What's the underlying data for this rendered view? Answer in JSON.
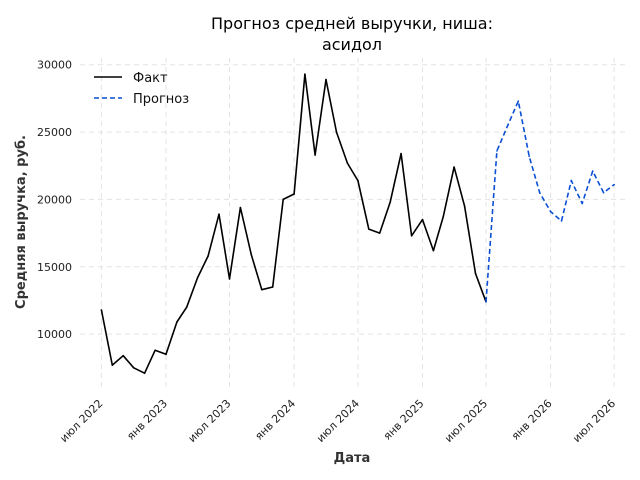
{
  "chart_data": {
    "type": "line",
    "title_lines": [
      "Прогноз средней выручки, ниша:",
      "асидол"
    ],
    "xlabel": "Дата",
    "ylabel": "Средняя выручка, руб.",
    "ylim": [
      6000,
      30500
    ],
    "xlim": [
      "2022-05-01",
      "2026-08-01"
    ],
    "grid": true,
    "legend_position": "top-left",
    "x_ticks": [
      {
        "date": "2022-07-01",
        "label": "июл 2022"
      },
      {
        "date": "2023-01-01",
        "label": "янв 2023"
      },
      {
        "date": "2023-07-01",
        "label": "июл 2023"
      },
      {
        "date": "2024-01-01",
        "label": "янв 2024"
      },
      {
        "date": "2024-07-01",
        "label": "июл 2024"
      },
      {
        "date": "2025-01-01",
        "label": "янв 2025"
      },
      {
        "date": "2025-07-01",
        "label": "июл 2025"
      },
      {
        "date": "2026-01-01",
        "label": "янв 2026"
      },
      {
        "date": "2026-07-01",
        "label": "июл 2026"
      }
    ],
    "y_ticks": [
      {
        "value": 10000,
        "label": "10000"
      },
      {
        "value": 15000,
        "label": "15000"
      },
      {
        "value": 20000,
        "label": "20000"
      },
      {
        "value": 25000,
        "label": "25000"
      },
      {
        "value": 30000,
        "label": "30000"
      }
    ],
    "series": [
      {
        "name": "Факт",
        "color": "#000000",
        "dash": "solid",
        "points": [
          {
            "x": "2022-07-01",
            "y": 11800
          },
          {
            "x": "2022-08-01",
            "y": 7700
          },
          {
            "x": "2022-09-01",
            "y": 8400
          },
          {
            "x": "2022-10-01",
            "y": 7500
          },
          {
            "x": "2022-11-01",
            "y": 7100
          },
          {
            "x": "2022-12-01",
            "y": 8800
          },
          {
            "x": "2023-01-01",
            "y": 8500
          },
          {
            "x": "2023-02-01",
            "y": 10900
          },
          {
            "x": "2023-03-01",
            "y": 12000
          },
          {
            "x": "2023-04-01",
            "y": 14200
          },
          {
            "x": "2023-05-01",
            "y": 15800
          },
          {
            "x": "2023-06-01",
            "y": 18900
          },
          {
            "x": "2023-07-01",
            "y": 14100
          },
          {
            "x": "2023-08-01",
            "y": 19400
          },
          {
            "x": "2023-09-01",
            "y": 15900
          },
          {
            "x": "2023-10-01",
            "y": 13300
          },
          {
            "x": "2023-11-01",
            "y": 13500
          },
          {
            "x": "2023-12-01",
            "y": 20000
          },
          {
            "x": "2024-01-01",
            "y": 20400
          },
          {
            "x": "2024-02-01",
            "y": 29300
          },
          {
            "x": "2024-03-01",
            "y": 23300
          },
          {
            "x": "2024-04-01",
            "y": 28900
          },
          {
            "x": "2024-05-01",
            "y": 25000
          },
          {
            "x": "2024-06-01",
            "y": 22700
          },
          {
            "x": "2024-07-01",
            "y": 21400
          },
          {
            "x": "2024-08-01",
            "y": 17800
          },
          {
            "x": "2024-09-01",
            "y": 17500
          },
          {
            "x": "2024-10-01",
            "y": 19800
          },
          {
            "x": "2024-11-01",
            "y": 23400
          },
          {
            "x": "2024-12-01",
            "y": 17300
          },
          {
            "x": "2025-01-01",
            "y": 18500
          },
          {
            "x": "2025-02-01",
            "y": 16200
          },
          {
            "x": "2025-03-01",
            "y": 18700
          },
          {
            "x": "2025-04-01",
            "y": 22400
          },
          {
            "x": "2025-05-01",
            "y": 19500
          },
          {
            "x": "2025-06-01",
            "y": 14500
          },
          {
            "x": "2025-07-01",
            "y": 12400
          }
        ]
      },
      {
        "name": "Прогноз",
        "color": "#0b4fd4",
        "dash": "dashed",
        "points": [
          {
            "x": "2025-07-01",
            "y": 12400
          },
          {
            "x": "2025-08-01",
            "y": 23600
          },
          {
            "x": "2025-09-01",
            "y": 25500
          },
          {
            "x": "2025-10-01",
            "y": 27300
          },
          {
            "x": "2025-11-01",
            "y": 23200
          },
          {
            "x": "2025-12-01",
            "y": 20500
          },
          {
            "x": "2026-01-01",
            "y": 19100
          },
          {
            "x": "2026-02-01",
            "y": 18400
          },
          {
            "x": "2026-03-01",
            "y": 21400
          },
          {
            "x": "2026-04-01",
            "y": 19700
          },
          {
            "x": "2026-05-01",
            "y": 22100
          },
          {
            "x": "2026-06-01",
            "y": 20500
          },
          {
            "x": "2026-07-01",
            "y": 21100
          }
        ]
      }
    ]
  }
}
